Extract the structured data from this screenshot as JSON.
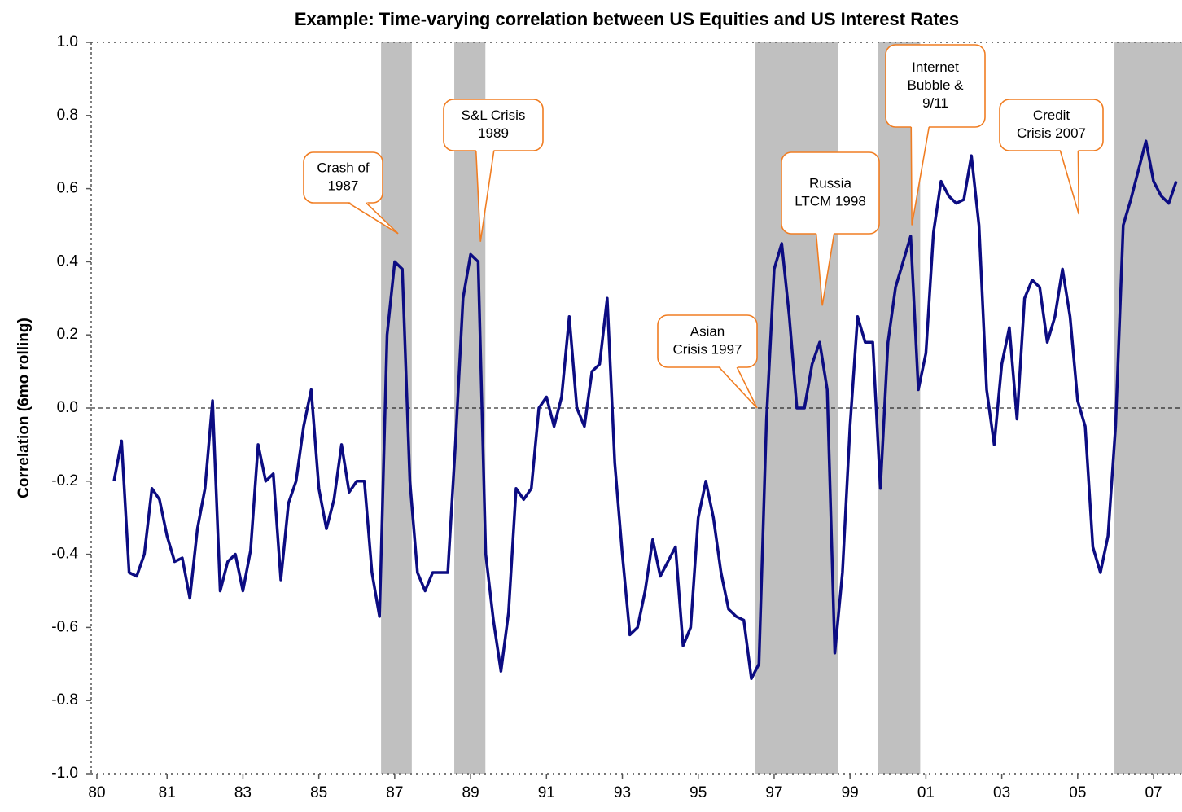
{
  "chart_data": {
    "type": "line",
    "title": "Example: Time-varying correlation between US Equities and US Interest Rates",
    "y_label": "Correlation (6mo rolling)",
    "color": "#0c0c82",
    "shade_color": "#c0c0c0",
    "callout_color": "#f07d22",
    "xlim": [
      1979,
      2007.75
    ],
    "ylim": [
      -1.0,
      1.0
    ],
    "xticks": [
      {
        "value": 1979.15,
        "label": "80"
      },
      {
        "value": 1981,
        "label": "81"
      },
      {
        "value": 1983,
        "label": "83"
      },
      {
        "value": 1985,
        "label": "85"
      },
      {
        "value": 1987,
        "label": "87"
      },
      {
        "value": 1989,
        "label": "89"
      },
      {
        "value": 1991,
        "label": "91"
      },
      {
        "value": 1993,
        "label": "93"
      },
      {
        "value": 1995,
        "label": "95"
      },
      {
        "value": 1997,
        "label": "97"
      },
      {
        "value": 1999,
        "label": "99"
      },
      {
        "value": 2001,
        "label": "01"
      },
      {
        "value": 2003,
        "label": "03"
      },
      {
        "value": 2005,
        "label": "05"
      },
      {
        "value": 2007,
        "label": "07"
      }
    ],
    "yticks": [
      {
        "value": 1.0,
        "label": "1.0"
      },
      {
        "value": 0.8,
        "label": "0.8"
      },
      {
        "value": 0.6,
        "label": "0.6"
      },
      {
        "value": 0.4,
        "label": "0.4"
      },
      {
        "value": 0.2,
        "label": "0.2"
      },
      {
        "value": 0.0,
        "label": "0.0"
      },
      {
        "value": -0.2,
        "label": "-0.2"
      },
      {
        "value": -0.4,
        "label": "-0.4"
      },
      {
        "value": -0.6,
        "label": "-0.6"
      },
      {
        "value": -0.8,
        "label": "-0.8"
      },
      {
        "value": -1.0,
        "label": "-1.0"
      }
    ],
    "shaded_periods": [
      [
        1986.64,
        1987.45
      ],
      [
        1988.57,
        1989.39
      ],
      [
        1996.49,
        1998.68
      ],
      [
        1999.73,
        2000.85
      ],
      [
        2005.97,
        2007.75
      ]
    ],
    "x": [
      1979.6,
      1979.8,
      1980.0,
      1980.2,
      1980.4,
      1980.6,
      1980.8,
      1981.0,
      1981.2,
      1981.4,
      1981.6,
      1981.8,
      1982.0,
      1982.2,
      1982.4,
      1982.6,
      1982.8,
      1983.0,
      1983.2,
      1983.4,
      1983.6,
      1983.8,
      1984.0,
      1984.2,
      1984.4,
      1984.6,
      1984.8,
      1985.0,
      1985.2,
      1985.4,
      1985.6,
      1985.8,
      1986.0,
      1986.2,
      1986.4,
      1986.6,
      1986.8,
      1987.0,
      1987.2,
      1987.4,
      1987.6,
      1987.8,
      1988.0,
      1988.2,
      1988.4,
      1988.6,
      1988.8,
      1989.0,
      1989.2,
      1989.4,
      1989.6,
      1989.8,
      1990.0,
      1990.2,
      1990.4,
      1990.6,
      1990.8,
      1991.0,
      1991.2,
      1991.4,
      1991.6,
      1991.8,
      1992.0,
      1992.2,
      1992.4,
      1992.6,
      1992.8,
      1993.0,
      1993.2,
      1993.4,
      1993.6,
      1993.8,
      1994.0,
      1994.2,
      1994.4,
      1994.6,
      1994.8,
      1995.0,
      1995.2,
      1995.4,
      1995.6,
      1995.8,
      1996.0,
      1996.2,
      1996.4,
      1996.6,
      1996.8,
      1997.0,
      1997.2,
      1997.4,
      1997.6,
      1997.8,
      1998.0,
      1998.2,
      1998.4,
      1998.6,
      1998.8,
      1999.0,
      1999.2,
      1999.4,
      1999.6,
      1999.8,
      2000.0,
      2000.2,
      2000.4,
      2000.6,
      2000.8,
      2001.0,
      2001.2,
      2001.4,
      2001.6,
      2001.8,
      2002.0,
      2002.2,
      2002.4,
      2002.6,
      2002.8,
      2003.0,
      2003.2,
      2003.4,
      2003.6,
      2003.8,
      2004.0,
      2004.2,
      2004.4,
      2004.6,
      2004.8,
      2005.0,
      2005.2,
      2005.4,
      2005.6,
      2005.8,
      2006.0,
      2006.2,
      2006.4,
      2006.6,
      2006.8,
      2007.0,
      2007.2,
      2007.4,
      2007.6
    ],
    "values": [
      -0.2,
      -0.09,
      -0.45,
      -0.46,
      -0.4,
      -0.22,
      -0.25,
      -0.35,
      -0.42,
      -0.41,
      -0.52,
      -0.33,
      -0.22,
      0.02,
      -0.5,
      -0.42,
      -0.4,
      -0.5,
      -0.39,
      -0.1,
      -0.2,
      -0.18,
      -0.47,
      -0.26,
      -0.2,
      -0.05,
      0.05,
      -0.22,
      -0.33,
      -0.25,
      -0.1,
      -0.23,
      -0.2,
      -0.2,
      -0.45,
      -0.57,
      0.2,
      0.4,
      0.38,
      -0.2,
      -0.45,
      -0.5,
      -0.45,
      -0.45,
      -0.45,
      -0.1,
      0.3,
      0.42,
      0.4,
      -0.4,
      -0.58,
      -0.72,
      -0.56,
      -0.22,
      -0.25,
      -0.22,
      0.0,
      0.03,
      -0.05,
      0.03,
      0.25,
      0.0,
      -0.05,
      0.1,
      0.12,
      0.3,
      -0.15,
      -0.4,
      -0.62,
      -0.6,
      -0.5,
      -0.36,
      -0.46,
      -0.42,
      -0.38,
      -0.65,
      -0.6,
      -0.3,
      -0.2,
      -0.3,
      -0.45,
      -0.55,
      -0.57,
      -0.58,
      -0.74,
      -0.7,
      -0.03,
      0.38,
      0.45,
      0.25,
      0.0,
      0.0,
      0.12,
      0.18,
      0.05,
      -0.67,
      -0.45,
      -0.05,
      0.25,
      0.18,
      0.18,
      -0.22,
      0.18,
      0.33,
      0.4,
      0.47,
      0.05,
      0.15,
      0.48,
      0.62,
      0.58,
      0.56,
      0.57,
      0.69,
      0.5,
      0.05,
      -0.1,
      0.12,
      0.22,
      -0.03,
      0.3,
      0.35,
      0.33,
      0.18,
      0.25,
      0.38,
      0.25,
      0.02,
      -0.05,
      -0.38,
      -0.45,
      -0.35,
      -0.05,
      0.5,
      0.57,
      0.65,
      0.73,
      0.62,
      0.58,
      0.56,
      0.62
    ],
    "annotations": [
      {
        "text": [
          "Crash of",
          "1987"
        ],
        "x": 1987.09,
        "y": 0.477
      },
      {
        "text": [
          "S&L Crisis",
          "1989"
        ],
        "x": 1989.26,
        "y": 0.455
      },
      {
        "text": [
          "Asian",
          "Crisis 1997"
        ],
        "x": 1996.55,
        "y": 0.0
      },
      {
        "text": [
          "Russia",
          "LTCM 1998"
        ],
        "x": 1998.27,
        "y": 0.28
      },
      {
        "text": [
          "Internet",
          "Bubble &",
          "9/11"
        ],
        "x": 2000.63,
        "y": 0.5
      },
      {
        "text": [
          "Credit",
          "Crisis 2007"
        ],
        "x": 2005.03,
        "y": 0.53
      }
    ]
  }
}
